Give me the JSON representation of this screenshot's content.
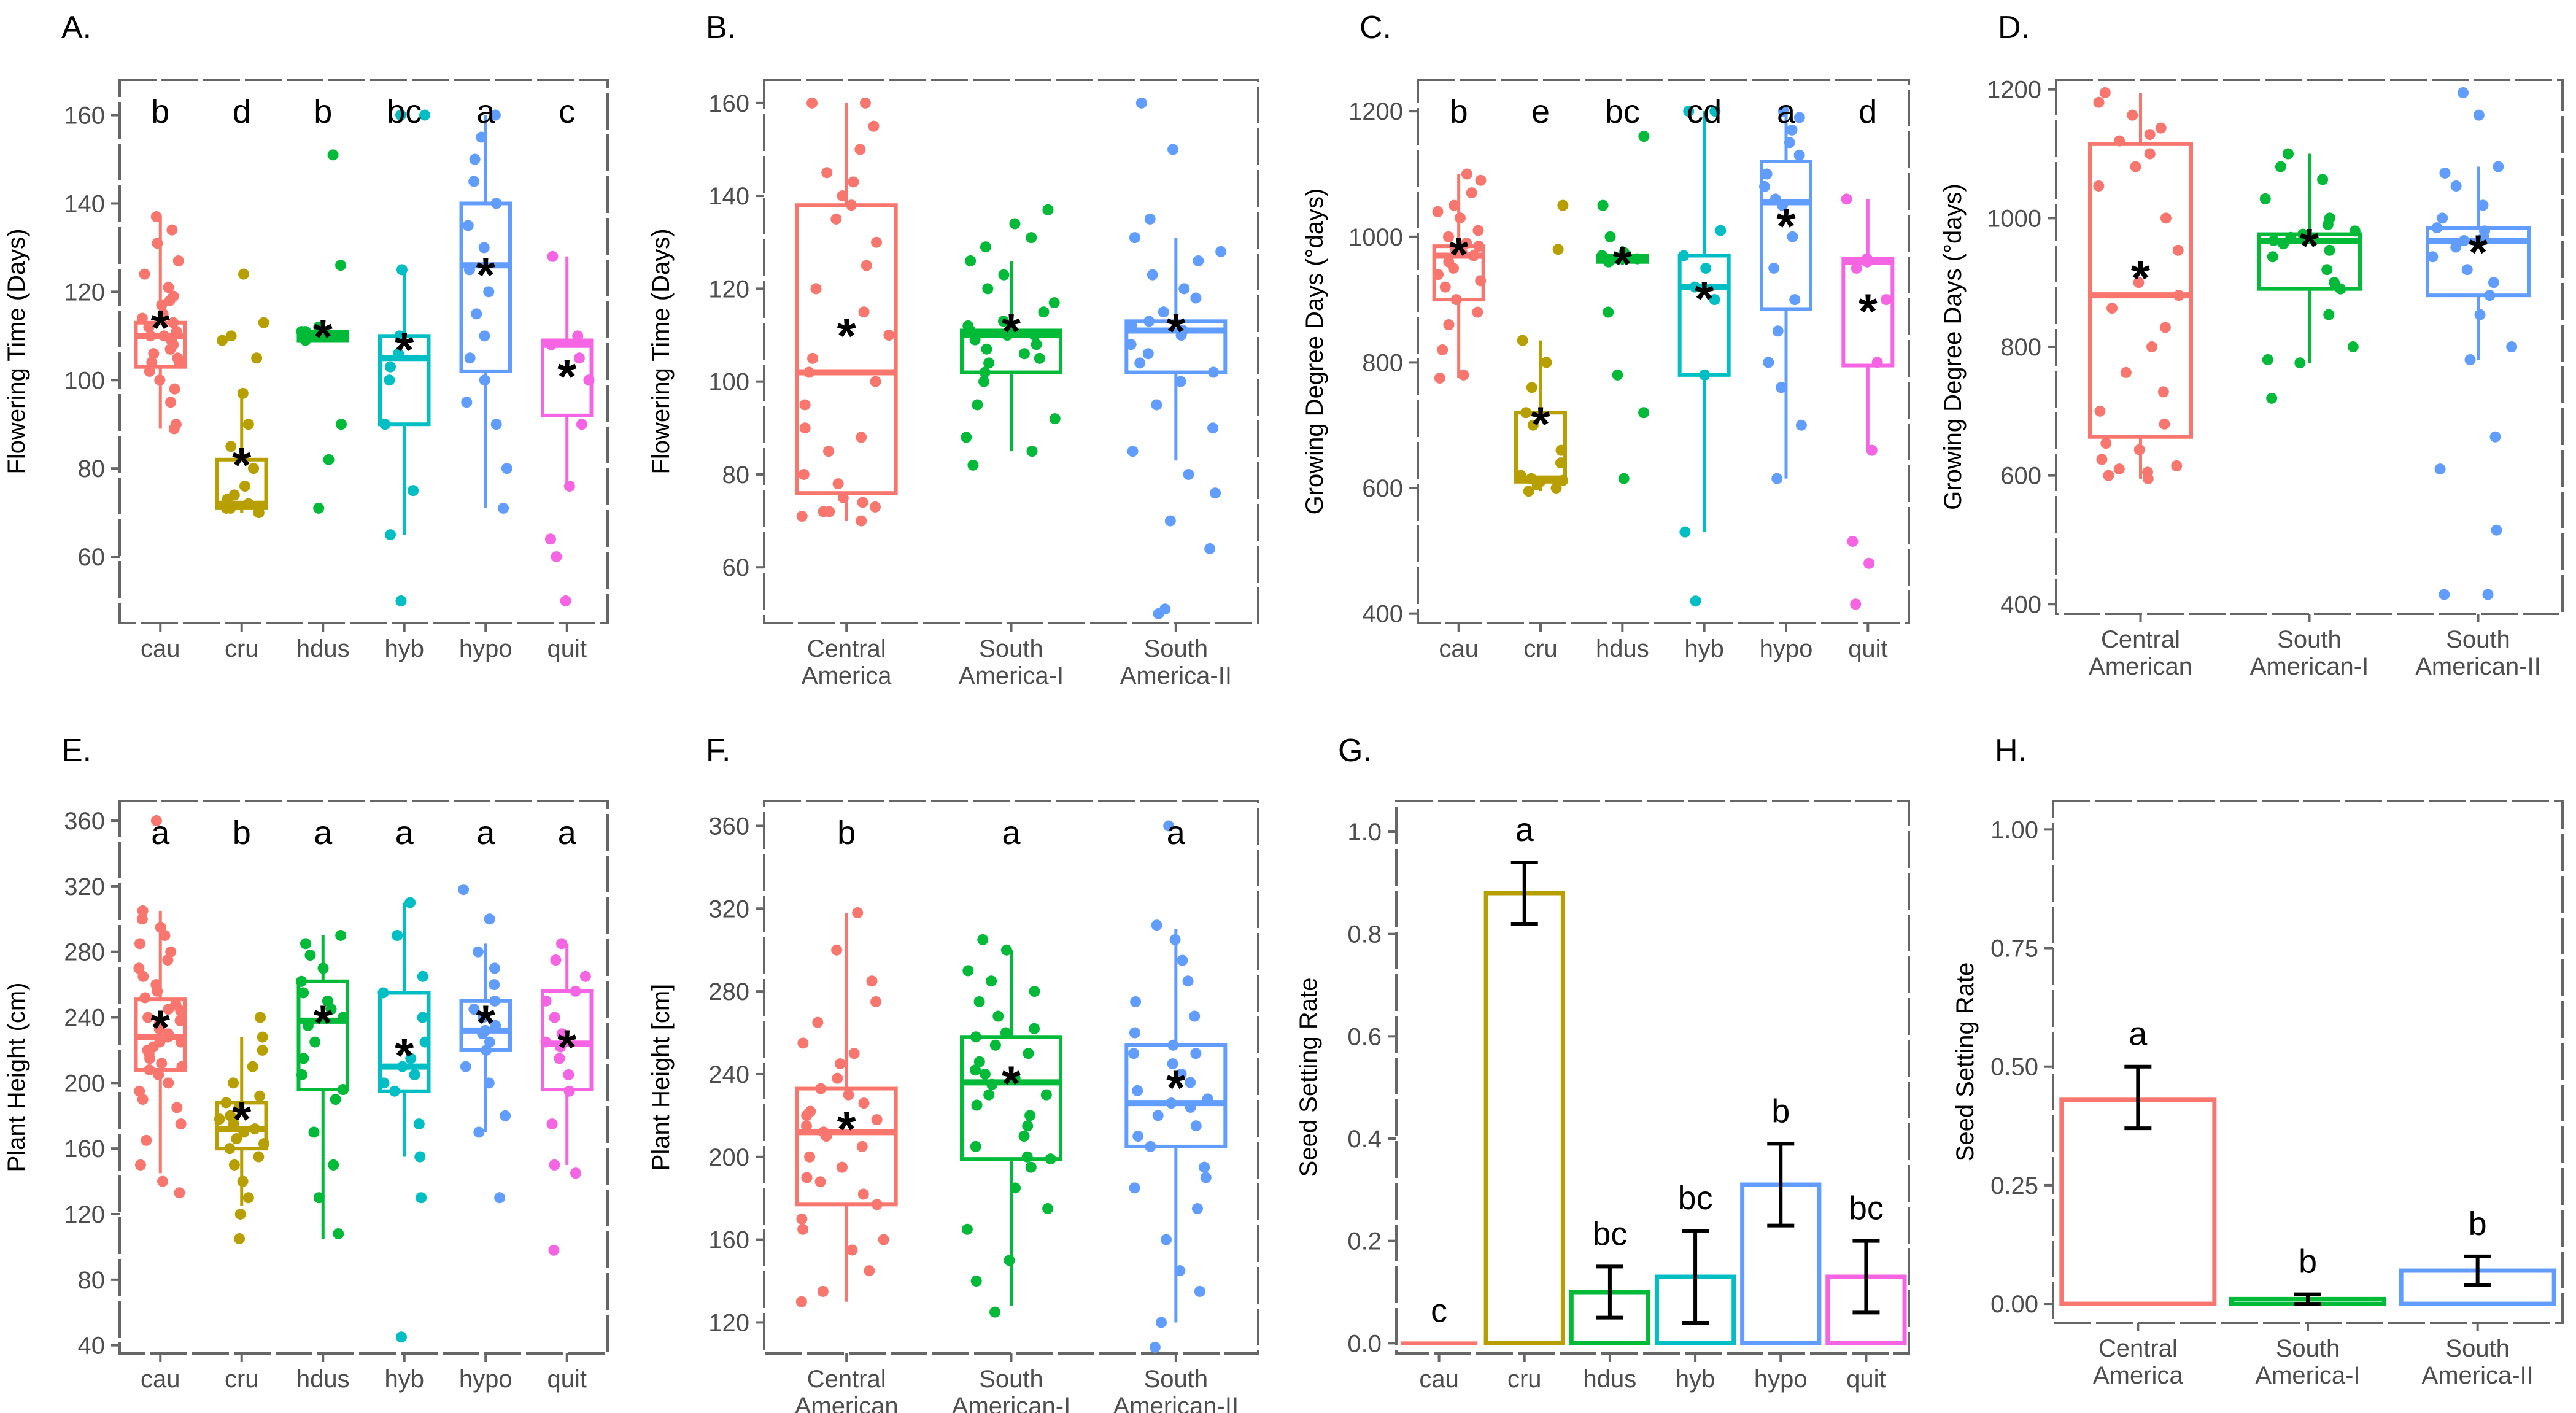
{
  "colors": {
    "cau": "#F8766D",
    "cru": "#B79F00",
    "hdus": "#00BA38",
    "hyb": "#00BFC4",
    "hypo": "#619CFF",
    "quit": "#F564E3",
    "g1": "#F8766D",
    "g2": "#00BA38",
    "g3": "#619CFF",
    "axis": "#666666",
    "grid": "#aaaaaa",
    "text": "#4d4d4d"
  },
  "chart_data": [
    {
      "id": "A",
      "panel_label": "A.",
      "type": "box",
      "ylabel": "Flowering Time (Days)",
      "ylim": [
        45,
        168
      ],
      "yticks": [
        60,
        80,
        100,
        120,
        140,
        160
      ],
      "categories": [
        "cau",
        "cru",
        "hdus",
        "hyb",
        "hypo",
        "quit"
      ],
      "color_keys": [
        "cau",
        "cru",
        "hdus",
        "hyb",
        "hypo",
        "quit"
      ],
      "letters": [
        "b",
        "d",
        "b",
        "bc",
        "a",
        "c"
      ],
      "boxes": [
        {
          "q1": 103,
          "median": 110,
          "q3": 113,
          "lo": 89,
          "hi": 137,
          "mean": 113
        },
        {
          "q1": 71,
          "median": 72,
          "q3": 82,
          "lo": 70,
          "hi": 97,
          "mean": 82
        },
        {
          "q1": 109,
          "median": 110,
          "q3": 111,
          "lo": 109,
          "hi": 111,
          "mean": 111
        },
        {
          "q1": 90,
          "median": 105,
          "q3": 110,
          "lo": 65,
          "hi": 125,
          "mean": 108
        },
        {
          "q1": 102,
          "median": 126,
          "q3": 140,
          "lo": 71,
          "hi": 160,
          "mean": 125
        },
        {
          "q1": 92,
          "median": 108,
          "q3": 109,
          "lo": 76,
          "hi": 128,
          "mean": 102
        }
      ],
      "points": [
        [
          89,
          90,
          95,
          100,
          102,
          104,
          105,
          106,
          107,
          108,
          109,
          110,
          110,
          111,
          112,
          113,
          114,
          115,
          117,
          119,
          121,
          124,
          127,
          131,
          134,
          137,
          98,
          104,
          118
        ],
        [
          70,
          70,
          71,
          71,
          72,
          73,
          74,
          76,
          80,
          85,
          90,
          97,
          105,
          109,
          110,
          113,
          124
        ],
        [
          71,
          82,
          90,
          109,
          110,
          110,
          111,
          111,
          112,
          126,
          151
        ],
        [
          50,
          65,
          75,
          90,
          100,
          103,
          106,
          110,
          125,
          160,
          160
        ],
        [
          71,
          80,
          90,
          95,
          100,
          105,
          110,
          115,
          120,
          125,
          130,
          135,
          140,
          145,
          150,
          155,
          160
        ],
        [
          50,
          60,
          64,
          76,
          90,
          100,
          105,
          108,
          110,
          128
        ]
      ]
    },
    {
      "id": "B",
      "panel_label": "B.",
      "type": "box",
      "ylabel": "Flowering Time (Days)",
      "ylim": [
        48,
        165
      ],
      "yticks": [
        60,
        80,
        100,
        120,
        140,
        160
      ],
      "categories": [
        "Central\nAmerica",
        "South\nAmerica-I",
        "South\nAmerica-II"
      ],
      "color_keys": [
        "g1",
        "g2",
        "g3"
      ],
      "letters": [],
      "boxes": [
        {
          "q1": 76,
          "median": 102,
          "q3": 138,
          "lo": 70,
          "hi": 160,
          "mean": 111
        },
        {
          "q1": 102,
          "median": 110,
          "q3": 111,
          "lo": 85,
          "hi": 126,
          "mean": 112
        },
        {
          "q1": 102,
          "median": 111,
          "q3": 113,
          "lo": 83,
          "hi": 131,
          "mean": 112
        }
      ],
      "points": [
        [
          70,
          71,
          72,
          73,
          75,
          78,
          80,
          85,
          90,
          95,
          100,
          102,
          105,
          110,
          115,
          120,
          125,
          130,
          135,
          138,
          140,
          145,
          150,
          155,
          160,
          160,
          72,
          74,
          88,
          143
        ],
        [
          82,
          85,
          88,
          92,
          95,
          100,
          102,
          104,
          105,
          106,
          107,
          108,
          109,
          110,
          110,
          111,
          111,
          112,
          113,
          115,
          117,
          120,
          123,
          126,
          129,
          131,
          134,
          137
        ],
        [
          50,
          51,
          64,
          70,
          76,
          80,
          85,
          90,
          95,
          100,
          102,
          104,
          106,
          108,
          110,
          111,
          112,
          113,
          115,
          118,
          120,
          123,
          126,
          128,
          131,
          135,
          150,
          160
        ]
      ]
    },
    {
      "id": "C",
      "panel_label": "C.",
      "type": "box",
      "ylabel": "Growing Degree Days (°days)",
      "ylim": [
        385,
        1250
      ],
      "yticks": [
        400,
        600,
        800,
        1000,
        1200
      ],
      "categories": [
        "cau",
        "cru",
        "hdus",
        "hyb",
        "hypo",
        "quit"
      ],
      "color_keys": [
        "cau",
        "cru",
        "hdus",
        "hyb",
        "hypo",
        "quit"
      ],
      "letters": [
        "b",
        "e",
        "bc",
        "cd",
        "a",
        "d"
      ],
      "boxes": [
        {
          "q1": 900,
          "median": 970,
          "q3": 985,
          "lo": 775,
          "hi": 1100,
          "mean": 980
        },
        {
          "q1": 610,
          "median": 615,
          "q3": 720,
          "lo": 595,
          "hi": 835,
          "mean": 710
        },
        {
          "q1": 960,
          "median": 965,
          "q3": 970,
          "lo": 955,
          "hi": 985,
          "mean": 965
        },
        {
          "q1": 780,
          "median": 920,
          "q3": 970,
          "lo": 530,
          "hi": 1200,
          "mean": 910
        },
        {
          "q1": 885,
          "median": 1055,
          "q3": 1120,
          "lo": 615,
          "hi": 1200,
          "mean": 1025
        },
        {
          "q1": 795,
          "median": 960,
          "q3": 965,
          "lo": 660,
          "hi": 1060,
          "mean": 890
        }
      ],
      "points": [
        [
          775,
          780,
          820,
          860,
          900,
          920,
          940,
          950,
          960,
          970,
          975,
          980,
          985,
          990,
          1000,
          1010,
          1030,
          1050,
          1070,
          1090,
          1100,
          880,
          1040,
          930
        ],
        [
          595,
          600,
          605,
          610,
          612,
          615,
          620,
          640,
          660,
          700,
          720,
          760,
          800,
          835,
          980,
          1050
        ],
        [
          615,
          720,
          780,
          880,
          960,
          965,
          970,
          975,
          1000,
          1050,
          1160
        ],
        [
          420,
          530,
          780,
          900,
          920,
          950,
          970,
          1010,
          1200,
          1200
        ],
        [
          615,
          700,
          760,
          800,
          850,
          900,
          950,
          1000,
          1050,
          1080,
          1100,
          1130,
          1150,
          1170,
          1190,
          1200,
          1060
        ],
        [
          415,
          480,
          515,
          660,
          800,
          900,
          950,
          960,
          965,
          1060
        ]
      ]
    },
    {
      "id": "D",
      "panel_label": "D.",
      "type": "box",
      "ylabel": "Growing Degree Days (°days)",
      "ylim": [
        385,
        1215
      ],
      "yticks": [
        400,
        600,
        800,
        1000,
        1200
      ],
      "categories": [
        "Central\nAmerican",
        "South\nAmerican-I",
        "South\nAmerican-II"
      ],
      "color_keys": [
        "g1",
        "g2",
        "g3"
      ],
      "letters": [],
      "boxes": [
        {
          "q1": 660,
          "median": 880,
          "q3": 1115,
          "lo": 595,
          "hi": 1195,
          "mean": 915
        },
        {
          "q1": 890,
          "median": 965,
          "q3": 975,
          "lo": 775,
          "hi": 1100,
          "mean": 965
        },
        {
          "q1": 880,
          "median": 965,
          "q3": 985,
          "lo": 780,
          "hi": 1080,
          "mean": 955
        }
      ],
      "points": [
        [
          595,
          600,
          605,
          615,
          625,
          650,
          680,
          700,
          730,
          760,
          800,
          830,
          860,
          880,
          900,
          950,
          1000,
          1050,
          1080,
          1100,
          1120,
          1140,
          1160,
          1180,
          1195,
          610,
          640,
          1130
        ],
        [
          720,
          775,
          780,
          800,
          850,
          890,
          900,
          920,
          940,
          950,
          960,
          965,
          970,
          975,
          980,
          990,
          1000,
          1030,
          1060,
          1080,
          1100
        ],
        [
          415,
          415,
          515,
          610,
          660,
          780,
          800,
          850,
          880,
          900,
          920,
          940,
          955,
          965,
          970,
          980,
          985,
          1000,
          1020,
          1050,
          1070,
          1080,
          1160,
          1195
        ]
      ]
    },
    {
      "id": "E",
      "panel_label": "E.",
      "type": "box",
      "ylabel": "Plant Height (cm)",
      "ylim": [
        35,
        372
      ],
      "yticks": [
        40,
        80,
        120,
        160,
        200,
        240,
        280,
        320,
        360
      ],
      "categories": [
        "cau",
        "cru",
        "hdus",
        "hyb",
        "hypo",
        "quit"
      ],
      "color_keys": [
        "cau",
        "cru",
        "hdus",
        "hyb",
        "hypo",
        "quit"
      ],
      "letters": [
        "a",
        "b",
        "a",
        "a",
        "a",
        "a"
      ],
      "boxes": [
        {
          "q1": 208,
          "median": 228,
          "q3": 251,
          "lo": 145,
          "hi": 305,
          "mean": 237
        },
        {
          "q1": 160,
          "median": 172,
          "q3": 188,
          "lo": 125,
          "hi": 228,
          "mean": 181
        },
        {
          "q1": 196,
          "median": 238,
          "q3": 262,
          "lo": 105,
          "hi": 290,
          "mean": 240
        },
        {
          "q1": 195,
          "median": 210,
          "q3": 255,
          "lo": 155,
          "hi": 310,
          "mean": 220
        },
        {
          "q1": 220,
          "median": 232,
          "q3": 250,
          "lo": 170,
          "hi": 285,
          "mean": 240
        },
        {
          "q1": 196,
          "median": 224,
          "q3": 256,
          "lo": 150,
          "hi": 285,
          "mean": 225
        }
      ],
      "points": [
        [
          133,
          140,
          150,
          165,
          175,
          185,
          190,
          195,
          200,
          205,
          208,
          212,
          215,
          218,
          220,
          222,
          225,
          228,
          230,
          233,
          236,
          240,
          244,
          248,
          252,
          256,
          260,
          265,
          270,
          275,
          280,
          285,
          290,
          295,
          300,
          305,
          210,
          225,
          238,
          245,
          360
        ],
        [
          105,
          120,
          130,
          140,
          150,
          155,
          160,
          163,
          166,
          170,
          172,
          175,
          178,
          180,
          185,
          188,
          192,
          200,
          210,
          220,
          228,
          240
        ],
        [
          108,
          130,
          150,
          170,
          190,
          196,
          205,
          215,
          225,
          235,
          240,
          245,
          250,
          255,
          262,
          270,
          278,
          285,
          290
        ],
        [
          45,
          130,
          155,
          175,
          195,
          200,
          205,
          210,
          215,
          225,
          240,
          255,
          265,
          290,
          310
        ],
        [
          130,
          170,
          180,
          200,
          210,
          220,
          225,
          230,
          232,
          235,
          240,
          245,
          250,
          260,
          270,
          280,
          300,
          318
        ],
        [
          98,
          145,
          150,
          175,
          195,
          205,
          215,
          222,
          225,
          230,
          240,
          250,
          256,
          265,
          275,
          285
        ]
      ]
    },
    {
      "id": "F",
      "panel_label": "F.",
      "type": "box",
      "ylabel": "Plant Height [cm]",
      "ylim": [
        105,
        372
      ],
      "yticks": [
        120,
        160,
        200,
        240,
        280,
        320,
        360
      ],
      "categories": [
        "Central\nAmerican",
        "South\nAmerican-I",
        "South\nAmerican-II"
      ],
      "color_keys": [
        "g1",
        "g2",
        "g3"
      ],
      "letters": [
        "b",
        "a",
        "a"
      ],
      "boxes": [
        {
          "q1": 177,
          "median": 212,
          "q3": 233,
          "lo": 130,
          "hi": 318,
          "mean": 216
        },
        {
          "q1": 199,
          "median": 236,
          "q3": 258,
          "lo": 128,
          "hi": 300,
          "mean": 238
        },
        {
          "q1": 205,
          "median": 226,
          "q3": 254,
          "lo": 120,
          "hi": 310,
          "mean": 236
        }
      ],
      "points": [
        [
          130,
          135,
          145,
          155,
          165,
          170,
          177,
          182,
          188,
          195,
          200,
          205,
          210,
          212,
          215,
          218,
          222,
          226,
          230,
          233,
          238,
          245,
          255,
          265,
          275,
          285,
          300,
          318,
          160,
          190,
          220,
          250
        ],
        [
          125,
          140,
          150,
          165,
          175,
          185,
          195,
          199,
          205,
          210,
          215,
          220,
          225,
          230,
          235,
          238,
          242,
          246,
          250,
          254,
          258,
          262,
          268,
          275,
          280,
          290,
          300,
          305,
          200,
          230,
          260,
          285,
          240
        ],
        [
          108,
          120,
          135,
          145,
          160,
          175,
          185,
          195,
          205,
          210,
          215,
          220,
          224,
          228,
          232,
          236,
          240,
          245,
          250,
          254,
          260,
          268,
          275,
          285,
          295,
          305,
          312,
          360,
          226,
          250,
          190
        ]
      ]
    },
    {
      "id": "G",
      "panel_label": "G.",
      "type": "bar",
      "ylabel": "Seed Setting Rate",
      "ylim": [
        -0.02,
        1.06
      ],
      "yticks": [
        0.0,
        0.2,
        0.4,
        0.6,
        0.8,
        1.0
      ],
      "ytick_labels": [
        "0.0",
        "0.2",
        "0.4",
        "0.6",
        "0.8",
        "1.0"
      ],
      "categories": [
        "cau",
        "cru",
        "hdus",
        "hyb",
        "hypo",
        "quit"
      ],
      "color_keys": [
        "cau",
        "cru",
        "hdus",
        "hyb",
        "hypo",
        "quit"
      ],
      "letters": [
        "c",
        "a",
        "bc",
        "bc",
        "b",
        "bc"
      ],
      "values": [
        0.0,
        0.88,
        0.1,
        0.13,
        0.31,
        0.13
      ],
      "err_low": [
        0.0,
        0.82,
        0.05,
        0.04,
        0.23,
        0.06
      ],
      "err_high": [
        0.0,
        0.94,
        0.15,
        0.22,
        0.39,
        0.2
      ]
    },
    {
      "id": "H",
      "panel_label": "H.",
      "type": "bar",
      "ylabel": "Seed Setting Rate",
      "ylim": [
        -0.04,
        1.06
      ],
      "yticks": [
        0.0,
        0.25,
        0.5,
        0.75,
        1.0
      ],
      "ytick_labels": [
        "0.00",
        "0.25",
        "0.50",
        "0.75",
        "1.00"
      ],
      "categories": [
        "Central\nAmerica",
        "South\nAmerica-I",
        "South\nAmerica-II"
      ],
      "color_keys": [
        "g1",
        "g2",
        "g3"
      ],
      "letters": [
        "a",
        "b",
        "b"
      ],
      "values": [
        0.43,
        0.01,
        0.07
      ],
      "err_low": [
        0.37,
        0.0,
        0.04
      ],
      "err_high": [
        0.5,
        0.02,
        0.1
      ]
    }
  ]
}
